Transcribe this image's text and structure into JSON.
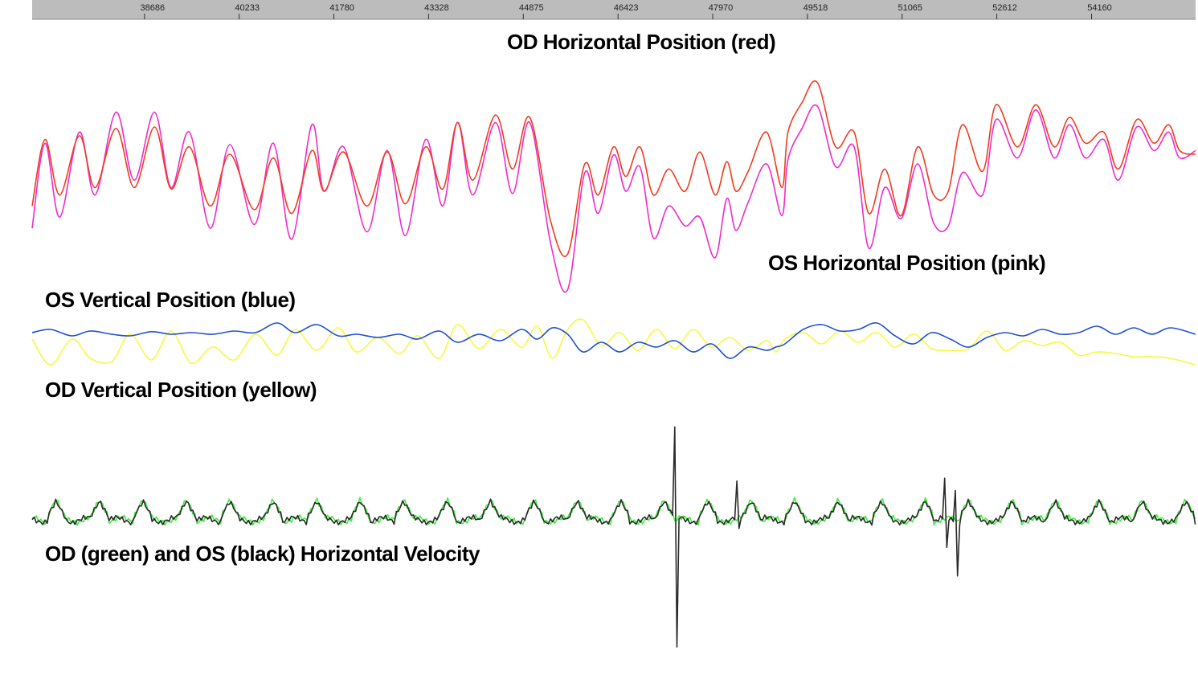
{
  "labels": {
    "od_horizontal": "OD Horizontal Position (red)",
    "os_horizontal": "OS Horizontal Position (pink)",
    "os_vertical": "OS Vertical Position (blue)",
    "od_vertical": "OD Vertical Position (yellow)",
    "velocity": "OD (green) and OS (black) Horizontal Velocity"
  },
  "chart_data": {
    "type": "line",
    "x_axis": {
      "position": "top",
      "ticks": [
        38686,
        40233,
        41780,
        43328,
        44875,
        46423,
        47970,
        49518,
        51065,
        52612,
        54160
      ],
      "range": [
        36850,
        55860
      ],
      "ruler_color": "#bcbcbc"
    },
    "grid": false,
    "legend": "none",
    "panels": [
      {
        "id": "horizontal",
        "y_range": [
          -1,
          1
        ],
        "series": [
          {
            "id": "os_h",
            "color": "#ee2ccc",
            "x": [
              36850,
              37060,
              37300,
              37620,
              37880,
              38220,
              38520,
              38850,
              39120,
              39420,
              39760,
              40080,
              40480,
              40790,
              41090,
              41420,
              41620,
              41940,
              42320,
              42650,
              42950,
              43280,
              43560,
              43800,
              44050,
              44420,
              44700,
              44980,
              45320,
              45600,
              45880,
              46100,
              46350,
              46550,
              46780,
              47000,
              47250,
              47520,
              47760,
              48010,
              48200,
              48350,
              48550,
              48850,
              49100,
              49200,
              49430,
              49680,
              49980,
              50280,
              50520,
              50780,
              51050,
              51320,
              51580,
              51820,
              52050,
              52380,
              52600,
              52950,
              53250,
              53550,
              53800,
              54060,
              54360,
              54600,
              54900,
              55180,
              55420,
              55600,
              55860
            ],
            "y": [
              -0.75,
              0.4,
              -0.6,
              0.55,
              -0.3,
              0.82,
              -0.1,
              0.82,
              -0.2,
              0.55,
              -0.75,
              0.38,
              -0.7,
              0.4,
              -0.9,
              0.65,
              -0.25,
              0.35,
              -0.8,
              0.3,
              -0.85,
              0.45,
              -0.45,
              0.68,
              -0.3,
              0.68,
              -0.28,
              0.68,
              -0.95,
              -1.58,
              0.0,
              -0.55,
              0.24,
              -0.25,
              0.08,
              -0.88,
              -0.45,
              -0.72,
              -0.6,
              -1.15,
              -0.35,
              -0.78,
              -0.4,
              0.12,
              -0.58,
              0.18,
              0.6,
              0.9,
              0.08,
              0.35,
              -1.02,
              -0.2,
              -0.62,
              0.12,
              -0.68,
              -0.72,
              0.0,
              -0.3,
              0.72,
              0.2,
              0.85,
              0.2,
              0.65,
              0.2,
              0.45,
              -0.1,
              0.62,
              0.3,
              0.55,
              0.2,
              0.3
            ]
          },
          {
            "id": "od_h",
            "color": "#f03c20",
            "x": [
              36850,
              37060,
              37300,
              37620,
              37880,
              38220,
              38520,
              38850,
              39120,
              39420,
              39760,
              40080,
              40480,
              40790,
              41090,
              41420,
              41620,
              41940,
              42320,
              42650,
              42950,
              43280,
              43560,
              43800,
              44050,
              44420,
              44700,
              44980,
              45320,
              45600,
              45880,
              46100,
              46350,
              46550,
              46780,
              47000,
              47250,
              47520,
              47760,
              48010,
              48200,
              48350,
              48550,
              48850,
              49100,
              49200,
              49430,
              49680,
              49980,
              50280,
              50520,
              50780,
              51050,
              51320,
              51580,
              51820,
              52050,
              52380,
              52600,
              52950,
              53250,
              53550,
              53800,
              54060,
              54360,
              54600,
              54900,
              55180,
              55420,
              55600,
              55860
            ],
            "y": [
              -0.45,
              0.45,
              -0.3,
              0.5,
              -0.2,
              0.6,
              -0.2,
              0.62,
              -0.22,
              0.35,
              -0.45,
              0.25,
              -0.5,
              0.2,
              -0.55,
              0.3,
              -0.25,
              0.28,
              -0.45,
              0.28,
              -0.42,
              0.35,
              -0.22,
              0.68,
              -0.1,
              0.78,
              0.05,
              0.75,
              -0.65,
              -1.1,
              0.12,
              -0.3,
              0.35,
              -0.05,
              0.35,
              -0.3,
              0.05,
              -0.25,
              0.28,
              -0.3,
              0.15,
              -0.25,
              0.02,
              0.55,
              -0.2,
              0.55,
              0.95,
              1.22,
              0.35,
              0.55,
              -0.55,
              0.05,
              -0.58,
              0.35,
              -0.3,
              -0.25,
              0.65,
              0.02,
              0.92,
              0.35,
              0.92,
              0.35,
              0.75,
              0.4,
              0.55,
              0.05,
              0.72,
              0.4,
              0.65,
              0.3,
              0.25
            ]
          }
        ]
      },
      {
        "id": "vertical",
        "y_range": [
          -1,
          1
        ],
        "series": [
          {
            "id": "od_v",
            "color": "#f8f840",
            "x": [
              36850,
              37150,
              37500,
              37800,
              38150,
              38450,
              38800,
              39120,
              39450,
              39800,
              40150,
              40500,
              40850,
              41150,
              41500,
              41850,
              42150,
              42500,
              42850,
              43150,
              43500,
              43800,
              44150,
              44500,
              44850,
              45100,
              45350,
              45600,
              45850,
              46150,
              46450,
              46750,
              47050,
              47350,
              47650,
              47950,
              48250,
              48550,
              48850,
              49000,
              49150,
              49450,
              49750,
              50050,
              50350,
              50650,
              50950,
              51250,
              51550,
              51850,
              52150,
              52450,
              52750,
              53050,
              53350,
              53650,
              53950,
              54250,
              54550,
              54850,
              55150,
              55450,
              55860
            ],
            "y": [
              0.05,
              -0.75,
              0.05,
              -0.55,
              -0.65,
              0.2,
              -0.6,
              0.3,
              -0.7,
              -0.2,
              -0.6,
              0.2,
              -0.45,
              0.35,
              -0.3,
              0.4,
              -0.35,
              0.1,
              -0.4,
              0.15,
              -0.55,
              0.5,
              -0.25,
              0.35,
              -0.2,
              0.45,
              -0.55,
              0.35,
              0.65,
              -0.15,
              0.25,
              -0.3,
              0.35,
              -0.25,
              0.35,
              -0.2,
              0.1,
              -0.3,
              0.0,
              -0.35,
              0.05,
              0.25,
              -0.1,
              0.3,
              -0.05,
              0.25,
              -0.2,
              0.2,
              -0.25,
              -0.3,
              -0.25,
              0.3,
              -0.3,
              0.0,
              -0.15,
              -0.05,
              -0.45,
              -0.35,
              -0.4,
              -0.5,
              -0.5,
              -0.55,
              -0.75
            ]
          },
          {
            "id": "os_v",
            "color": "#2050d0",
            "x": [
              36850,
              37150,
              37500,
              37800,
              38150,
              38450,
              38800,
              39120,
              39450,
              39800,
              40150,
              40500,
              40850,
              41150,
              41500,
              41850,
              42150,
              42500,
              42850,
              43150,
              43500,
              43800,
              44150,
              44500,
              44850,
              45100,
              45350,
              45600,
              45850,
              46150,
              46450,
              46750,
              47050,
              47350,
              47650,
              47950,
              48250,
              48550,
              48850,
              49000,
              49150,
              49450,
              49750,
              50050,
              50350,
              50650,
              50950,
              51250,
              51550,
              51850,
              52150,
              52450,
              52750,
              53050,
              53350,
              53650,
              53950,
              54250,
              54550,
              54850,
              55150,
              55450,
              55860
            ],
            "y": [
              0.25,
              0.35,
              0.15,
              0.3,
              0.2,
              0.15,
              0.28,
              0.2,
              0.25,
              0.2,
              0.3,
              0.25,
              0.55,
              0.25,
              0.5,
              0.15,
              0.2,
              0.1,
              0.2,
              0.05,
              0.3,
              -0.05,
              0.2,
              0.0,
              0.35,
              0.05,
              0.4,
              0.2,
              -0.35,
              -0.05,
              -0.35,
              -0.05,
              -0.2,
              0.0,
              -0.35,
              -0.1,
              -0.55,
              -0.2,
              -0.3,
              -0.2,
              -0.1,
              0.35,
              0.5,
              0.3,
              0.35,
              0.55,
              0.15,
              -0.1,
              0.25,
              0.05,
              -0.2,
              0.1,
              0.25,
              0.15,
              0.35,
              0.2,
              0.25,
              0.45,
              0.2,
              0.4,
              0.2,
              0.4,
              0.2
            ]
          }
        ]
      },
      {
        "id": "velocity",
        "y_range": [
          -1,
          1
        ],
        "series": [
          {
            "id": "od_vel",
            "color": "#40ee40",
            "pattern": "periodic",
            "period": 710,
            "amplitude": 0.18,
            "x_start": 36850,
            "x_end": 55860
          },
          {
            "id": "os_vel",
            "color": "#2a2a2a",
            "pattern": "periodic",
            "period": 710,
            "amplitude": 0.16,
            "x_start": 36850,
            "x_end": 55860,
            "spikes": [
              {
                "x": 47350,
                "y": [
                  0.92,
                  -1.4
                ]
              },
              {
                "x": 48350,
                "y": [
                  0.35,
                  -0.15
                ]
              },
              {
                "x": 51750,
                "y": [
                  0.38,
                  -0.35
                ]
              },
              {
                "x": 51920,
                "y": [
                  0.25,
                  -0.65
                ]
              }
            ]
          }
        ]
      }
    ]
  }
}
